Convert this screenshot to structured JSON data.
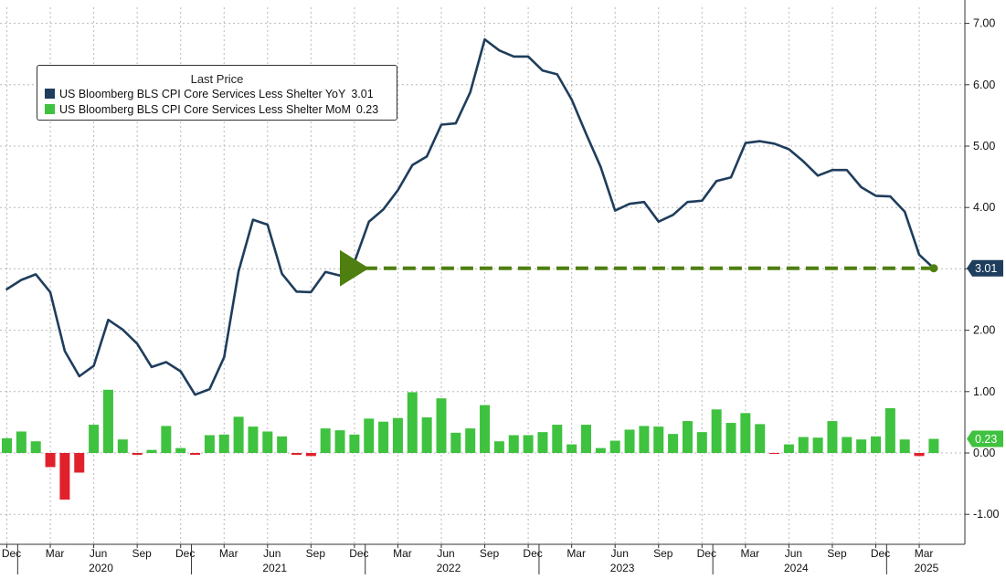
{
  "colors": {
    "yoy_line": "#1f3d5c",
    "mom_positive": "#3fc23f",
    "mom_negative": "#e0212b",
    "arrow": "#4e7f10",
    "grid": "#b9b9b9",
    "axis_text": "#111111"
  },
  "legend": {
    "title": "Last Price",
    "series": [
      {
        "label": "US Bloomberg BLS CPI Core Services Less Shelter YoY",
        "value": "3.01"
      },
      {
        "label": "US Bloomberg BLS CPI Core Services Less Shelter MoM",
        "value": "0.23"
      }
    ]
  },
  "last_value_tags": {
    "yoy": "3.01",
    "mom": "0.23"
  },
  "chart_data": {
    "type": "line",
    "y_axis": {
      "position": "right",
      "ticks": [
        -1,
        0,
        1,
        2,
        3,
        4,
        5,
        6,
        7
      ],
      "tick_labels": [
        "-1.00",
        "0.00",
        "1.00",
        "2.00",
        "3.00",
        "4.00",
        "5.00",
        "6.00",
        "7.00"
      ],
      "range": [
        -1.5,
        7.3
      ],
      "grid": true
    },
    "x_axis": {
      "start": "Dec 2019",
      "end": "Mar 2025",
      "month_labels": [
        "Dec",
        "Mar",
        "Jun",
        "Sep",
        "Dec",
        "Mar",
        "Jun",
        "Sep",
        "Dec",
        "Mar",
        "Jun",
        "Sep",
        "Dec",
        "Mar",
        "Jun",
        "Sep",
        "Dec",
        "Mar",
        "Jun",
        "Sep",
        "Dec",
        "Mar"
      ],
      "year_labels": [
        "2020",
        "2021",
        "2022",
        "2023",
        "2024",
        "2025"
      ],
      "grid": true
    },
    "series": [
      {
        "name": "US Bloomberg BLS CPI Core Services Less Shelter YoY",
        "type": "line",
        "values": [
          2.67,
          2.82,
          2.91,
          2.62,
          1.66,
          1.25,
          1.42,
          2.17,
          2.01,
          1.78,
          1.4,
          1.48,
          1.33,
          0.95,
          1.04,
          1.56,
          2.96,
          3.8,
          3.72,
          2.92,
          2.63,
          2.62,
          2.95,
          2.89,
          3.11,
          3.77,
          3.97,
          4.28,
          4.69,
          4.83,
          5.35,
          5.37,
          5.88,
          6.74,
          6.56,
          6.46,
          6.46,
          6.23,
          6.17,
          5.76,
          5.2,
          4.66,
          3.95,
          4.06,
          4.09,
          3.77,
          3.88,
          4.09,
          4.11,
          4.43,
          4.49,
          5.05,
          5.08,
          5.04,
          4.95,
          4.75,
          4.52,
          4.61,
          4.61,
          4.33,
          4.19,
          4.18,
          3.93,
          3.23,
          3.01
        ]
      },
      {
        "name": "US Bloomberg BLS CPI Core Services Less Shelter MoM",
        "type": "bar",
        "values": [
          0.24,
          0.35,
          0.19,
          -0.23,
          -0.76,
          -0.32,
          0.46,
          1.03,
          0.22,
          -0.03,
          0.05,
          0.44,
          0.08,
          -0.03,
          0.29,
          0.3,
          0.59,
          0.43,
          0.35,
          0.27,
          -0.03,
          -0.05,
          0.4,
          0.37,
          0.3,
          0.56,
          0.51,
          0.57,
          0.99,
          0.58,
          0.89,
          0.33,
          0.4,
          0.78,
          0.19,
          0.29,
          0.29,
          0.34,
          0.46,
          0.14,
          0.46,
          0.08,
          0.2,
          0.38,
          0.44,
          0.43,
          0.31,
          0.52,
          0.34,
          0.71,
          0.49,
          0.65,
          0.47,
          -0.01,
          0.14,
          0.26,
          0.25,
          0.52,
          0.26,
          0.22,
          0.27,
          0.73,
          0.22,
          -0.05,
          0.23
        ]
      }
    ],
    "annotations": [
      {
        "type": "arrow",
        "from_index": 64,
        "to_index": 24,
        "y": 3.01
      }
    ]
  }
}
